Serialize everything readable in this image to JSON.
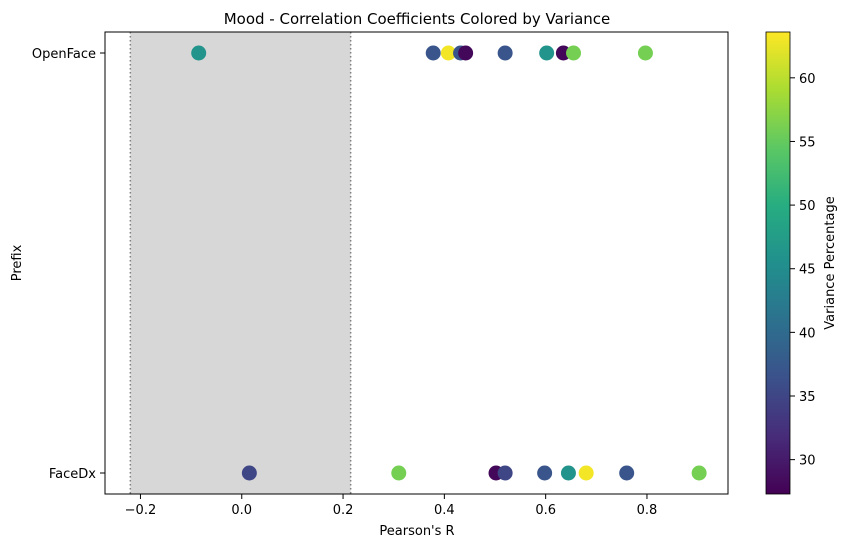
{
  "chart_data": {
    "type": "scatter",
    "title": "Mood - Correlation Coefficients Colored by Variance",
    "xlabel": "Pearson's R",
    "ylabel": "Prefix",
    "xlim": [
      -0.27,
      0.96
    ],
    "x_ticks": [
      -0.2,
      0.0,
      0.2,
      0.4,
      0.6,
      0.8
    ],
    "x_tick_labels": [
      "−0.2",
      "0.0",
      "0.2",
      "0.4",
      "0.6",
      "0.8"
    ],
    "categories": [
      "FaceDx",
      "OpenFace"
    ],
    "shaded_region": {
      "x_range": [
        -0.22,
        0.215
      ],
      "color": "#d7d7d7",
      "boundary_style": "dotted"
    },
    "colorbar": {
      "label": "Variance Percentage",
      "colormap": "viridis",
      "range": [
        27.3,
        63.6
      ],
      "ticks": [
        30,
        35,
        40,
        45,
        50,
        55,
        60
      ],
      "tick_labels": [
        "30",
        "35",
        "40",
        "45",
        "50",
        "55",
        "60"
      ]
    },
    "series": [
      {
        "category": "OpenFace",
        "points": [
          {
            "x": -0.085,
            "variance": 46
          },
          {
            "x": 0.378,
            "variance": 37
          },
          {
            "x": 0.408,
            "variance": 63
          },
          {
            "x": 0.432,
            "variance": 37
          },
          {
            "x": 0.442,
            "variance": 28
          },
          {
            "x": 0.52,
            "variance": 37
          },
          {
            "x": 0.602,
            "variance": 46
          },
          {
            "x": 0.635,
            "variance": 28
          },
          {
            "x": 0.655,
            "variance": 56
          },
          {
            "x": 0.797,
            "variance": 56
          }
        ]
      },
      {
        "category": "FaceDx",
        "points": [
          {
            "x": 0.015,
            "variance": 35
          },
          {
            "x": 0.31,
            "variance": 56
          },
          {
            "x": 0.502,
            "variance": 28
          },
          {
            "x": 0.52,
            "variance": 35
          },
          {
            "x": 0.598,
            "variance": 37
          },
          {
            "x": 0.645,
            "variance": 46
          },
          {
            "x": 0.68,
            "variance": 63
          },
          {
            "x": 0.76,
            "variance": 37
          },
          {
            "x": 0.903,
            "variance": 56
          }
        ]
      }
    ]
  }
}
